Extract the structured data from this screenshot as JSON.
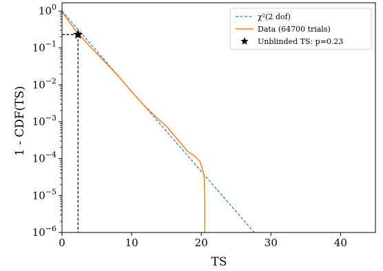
{
  "chart_data": {
    "type": "line",
    "title": "",
    "xlabel": "TS",
    "ylabel": "1 - CDF(TS)",
    "xlim": [
      0,
      45
    ],
    "ylim": [
      1e-06,
      1.5
    ],
    "yscale": "log",
    "grid": false,
    "legend_position": "top-right",
    "x_ticks": [
      0,
      10,
      20,
      30,
      40
    ],
    "y_ticks": [
      1e-06,
      1e-05,
      0.0001,
      0.001,
      0.01,
      0.1,
      1
    ],
    "series": [
      {
        "name": "χ²(2 dof)",
        "style": "dashed",
        "color": "#1f77b4",
        "x": [
          0,
          27.6
        ],
        "y": [
          1.0,
          1e-06
        ]
      },
      {
        "name": "Data (64700 trials)",
        "style": "solid",
        "color": "#ff7f0e",
        "x": [
          0,
          2,
          4,
          6,
          8,
          10,
          12,
          14,
          15,
          16,
          17,
          18,
          19,
          19.8,
          20.2,
          20.4,
          20.5,
          20.5
        ],
        "y": [
          0.95,
          0.29,
          0.11,
          0.045,
          0.018,
          0.0065,
          0.0025,
          0.0011,
          0.00075,
          0.00045,
          0.00027,
          0.00016,
          0.00012,
          8.5e-05,
          5e-05,
          3.5e-05,
          1e-05,
          1e-06
        ]
      }
    ],
    "marker": {
      "name": "Unblinded TS: p=0.23",
      "x": 2.3,
      "y": 0.23,
      "symbol": "star",
      "color": "#000000"
    }
  }
}
